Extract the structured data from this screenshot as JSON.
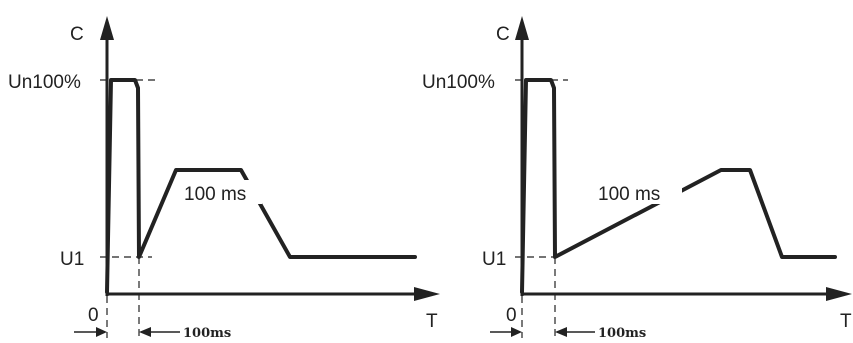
{
  "diagrams": [
    {
      "y_axis_label": "C",
      "x_axis_label": "T",
      "origin_label": "0",
      "level_high_label": "Un100%",
      "level_low_label": "U1",
      "ramp_label": "100 ms",
      "delay_label": "100ms"
    },
    {
      "y_axis_label": "C",
      "x_axis_label": "T",
      "origin_label": "0",
      "level_high_label": "Un100%",
      "level_low_label": "U1",
      "ramp_label": "100 ms",
      "delay_label": "100ms"
    }
  ]
}
